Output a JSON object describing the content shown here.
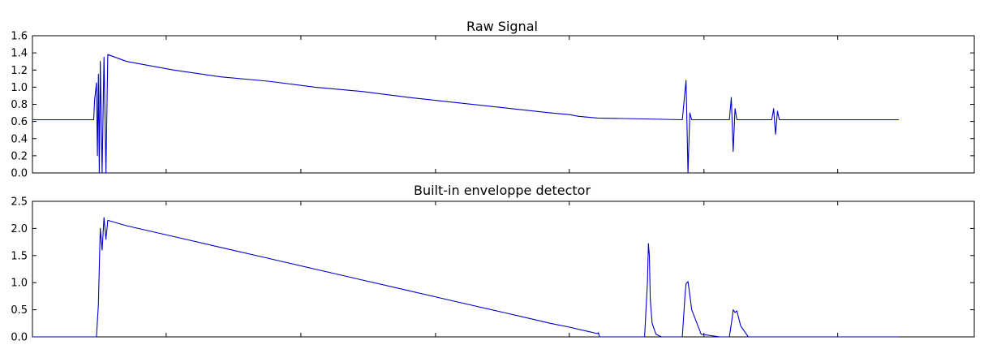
{
  "colors": {
    "series": "#0000cc",
    "axes": "#000000",
    "background": "#ffffff"
  },
  "chart_data": [
    {
      "type": "line",
      "title": "Raw Signal",
      "xlabel": "",
      "ylabel": "",
      "xlim": [
        0,
        1000
      ],
      "ylim": [
        0.0,
        1.6
      ],
      "yticks": [
        0.0,
        0.2,
        0.4,
        0.6,
        0.8,
        1.0,
        1.2,
        1.4,
        1.6
      ],
      "ytick_labels": [
        "0.0",
        "0.2",
        "0.4",
        "0.6",
        "0.8",
        "1.0",
        "1.2",
        "1.4",
        "1.6"
      ],
      "xticks": [
        0,
        142,
        285,
        428,
        570,
        713,
        855,
        1000
      ],
      "grid": false,
      "series": [
        {
          "x": [
            0,
            50,
            65,
            66,
            68,
            69,
            70,
            71,
            72,
            74,
            76,
            78,
            80,
            100,
            150,
            200,
            250,
            300,
            350,
            400,
            450,
            500,
            550,
            570,
            580,
            600,
            650,
            690,
            694,
            696,
            698,
            700,
            702,
            704,
            710,
            740,
            742,
            744,
            746,
            748,
            750,
            754,
            760,
            785,
            787,
            789,
            791,
            793,
            795,
            800,
            810,
            920
          ],
          "y": [
            0.62,
            0.62,
            0.62,
            0.85,
            1.05,
            0.2,
            1.15,
            0.0,
            1.3,
            0.0,
            1.35,
            0.0,
            1.38,
            1.3,
            1.2,
            1.12,
            1.07,
            1.0,
            0.95,
            0.88,
            0.82,
            0.76,
            0.7,
            0.68,
            0.66,
            0.64,
            0.63,
            0.62,
            1.08,
            0.0,
            0.7,
            0.62,
            0.62,
            0.62,
            0.62,
            0.62,
            0.88,
            0.25,
            0.75,
            0.62,
            0.62,
            0.62,
            0.62,
            0.62,
            0.75,
            0.45,
            0.72,
            0.62,
            0.62,
            0.62,
            0.62,
            0.62
          ]
        }
      ]
    },
    {
      "type": "line",
      "title": "Built-in enveloppe detector",
      "xlabel": "",
      "ylabel": "",
      "xlim": [
        0,
        1000
      ],
      "ylim": [
        0.0,
        2.5
      ],
      "yticks": [
        0.0,
        0.5,
        1.0,
        1.5,
        2.0,
        2.5
      ],
      "ytick_labels": [
        "0.0",
        "0.5",
        "1.0",
        "1.5",
        "2.0",
        "2.5"
      ],
      "xticks": [
        0,
        142,
        285,
        428,
        570,
        713,
        855,
        1000
      ],
      "grid": false,
      "series": [
        {
          "x": [
            0,
            60,
            68,
            70,
            72,
            74,
            76,
            78,
            80,
            100,
            150,
            200,
            250,
            300,
            350,
            400,
            450,
            500,
            550,
            570,
            590,
            600,
            601,
            602,
            620,
            650,
            653,
            654,
            655,
            656,
            658,
            662,
            668,
            690,
            693,
            694,
            696,
            697,
            700,
            710,
            730,
            740,
            743,
            744,
            746,
            748,
            752,
            760,
            920
          ],
          "y": [
            0.0,
            0.0,
            0.0,
            0.6,
            2.0,
            1.6,
            2.2,
            1.8,
            2.15,
            2.05,
            1.85,
            1.65,
            1.45,
            1.25,
            1.05,
            0.85,
            0.65,
            0.45,
            0.25,
            0.18,
            0.1,
            0.06,
            0.08,
            0.0,
            0.0,
            0.0,
            1.0,
            1.72,
            1.5,
            0.7,
            0.25,
            0.05,
            0.0,
            0.0,
            0.8,
            0.98,
            1.02,
            0.9,
            0.5,
            0.05,
            0.0,
            0.0,
            0.35,
            0.5,
            0.45,
            0.48,
            0.2,
            0.0,
            0.0
          ]
        }
      ]
    }
  ]
}
